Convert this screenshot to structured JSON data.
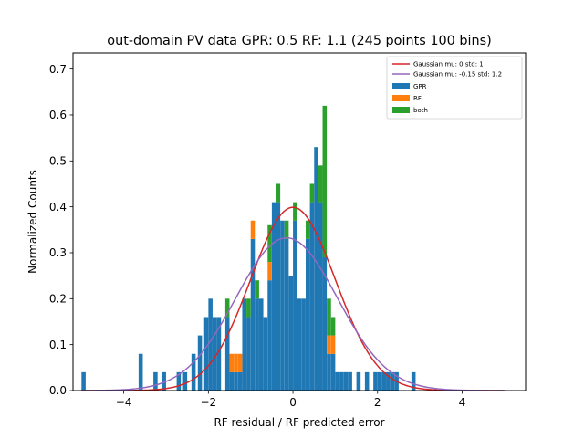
{
  "chart_data": {
    "type": "bar",
    "title": "out-domain PV data GPR: 0.5 RF: 1.1 (245 points 100 bins)",
    "xlabel": "RF residual / RF predicted error",
    "ylabel": "Normalized Counts",
    "xlim": [
      -5.2,
      5.5
    ],
    "ylim": [
      0,
      0.735
    ],
    "bin_width": 0.0985,
    "grid": false,
    "legend_position": "top-right",
    "xticks": [
      -4,
      -2,
      0,
      2,
      4
    ],
    "yticks": [
      0.0,
      0.1,
      0.2,
      0.3,
      0.4,
      0.5,
      0.6,
      0.7
    ],
    "xtick_labels": [
      "−4",
      "−2",
      "0",
      "2",
      "4"
    ],
    "ytick_labels": [
      "0.0",
      "0.1",
      "0.2",
      "0.3",
      "0.4",
      "0.5",
      "0.6",
      "0.7"
    ],
    "series": [
      {
        "name": "GPR",
        "color": "#1f77b4",
        "x": [
          -4.95,
          -3.6,
          -3.25,
          -3.05,
          -2.7,
          -2.55,
          -2.35,
          -2.2,
          -2.05,
          -1.95,
          -1.85,
          -1.75,
          -1.55,
          -1.45,
          -1.35,
          -1.25,
          -1.15,
          -1.05,
          -0.95,
          -0.85,
          -0.75,
          -0.65,
          -0.55,
          -0.45,
          -0.35,
          -0.25,
          -0.15,
          -0.05,
          0.05,
          0.15,
          0.25,
          0.35,
          0.45,
          0.55,
          0.65,
          0.75,
          0.85,
          0.95,
          1.05,
          1.15,
          1.25,
          1.35,
          1.55,
          1.75,
          1.95,
          2.05,
          2.15,
          2.25,
          2.35,
          2.45,
          2.85
        ],
        "values": [
          0.04,
          0.08,
          0.04,
          0.04,
          0.04,
          0.04,
          0.08,
          0.12,
          0.16,
          0.2,
          0.16,
          0.16,
          0.16,
          0.04,
          0.04,
          0.04,
          0.2,
          0.16,
          0.33,
          0.2,
          0.2,
          0.16,
          0.24,
          0.41,
          0.41,
          0.37,
          0.33,
          0.25,
          0.37,
          0.2,
          0.2,
          0.33,
          0.41,
          0.53,
          0.41,
          0.29,
          0.08,
          0.08,
          0.04,
          0.04,
          0.04,
          0.04,
          0.04,
          0.04,
          0.04,
          0.04,
          0.04,
          0.04,
          0.04,
          0.04,
          0.04
        ]
      },
      {
        "name": "RF",
        "color": "#ff7f0e",
        "x": [
          -1.45,
          -1.35,
          -1.25,
          -0.95,
          -0.55,
          0.85,
          0.95
        ],
        "values": [
          0.04,
          0.04,
          0.04,
          0.04,
          0.04,
          0.04,
          0.04
        ]
      },
      {
        "name": "both",
        "color": "#2ca02c",
        "x": [
          -1.55,
          -1.05,
          -0.85,
          -0.55,
          -0.35,
          -0.15,
          0.05,
          0.35,
          0.45,
          0.65,
          0.75,
          0.85,
          0.95
        ],
        "values": [
          0.04,
          0.04,
          0.04,
          0.08,
          0.04,
          0.04,
          0.04,
          0.04,
          0.04,
          0.08,
          0.33,
          0.08,
          0.04
        ]
      }
    ],
    "lines": [
      {
        "name": "Gaussian mu: 0 std: 1",
        "mu": 0,
        "std": 1,
        "color": "#d62728"
      },
      {
        "name": "Gaussian mu: -0.15 std: 1.2",
        "mu": -0.15,
        "std": 1.2,
        "color": "#9467bd"
      }
    ]
  }
}
